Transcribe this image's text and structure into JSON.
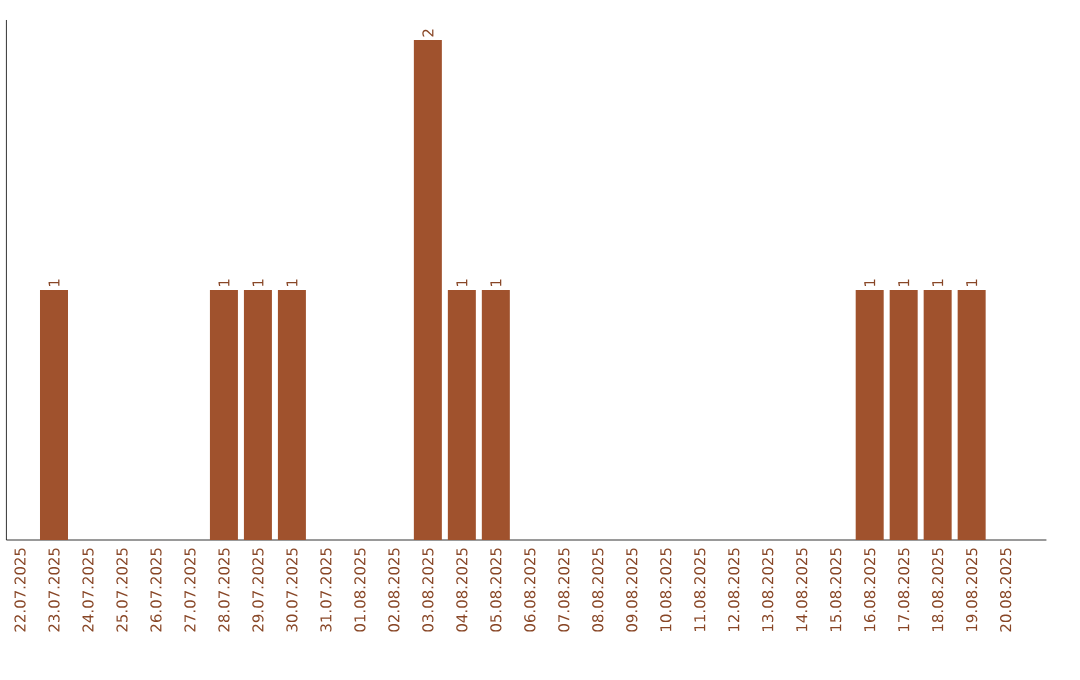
{
  "chart_data": {
    "type": "bar",
    "categories": [
      "22.07.2025",
      "23.07.2025",
      "24.07.2025",
      "25.07.2025",
      "26.07.2025",
      "27.07.2025",
      "28.07.2025",
      "29.07.2025",
      "30.07.2025",
      "31.07.2025",
      "01.08.2025",
      "02.08.2025",
      "03.08.2025",
      "04.08.2025",
      "05.08.2025",
      "06.08.2025",
      "07.08.2025",
      "08.08.2025",
      "09.08.2025",
      "10.08.2025",
      "11.08.2025",
      "12.08.2025",
      "13.08.2025",
      "14.08.2025",
      "15.08.2025",
      "16.08.2025",
      "17.08.2025",
      "18.08.2025",
      "19.08.2025",
      "20.08.2025"
    ],
    "values": [
      0,
      1,
      0,
      0,
      0,
      0,
      1,
      1,
      1,
      0,
      0,
      0,
      2,
      1,
      1,
      0,
      0,
      0,
      0,
      0,
      0,
      0,
      0,
      0,
      0,
      1,
      1,
      1,
      1,
      0
    ],
    "value_labels": [
      null,
      "1",
      null,
      null,
      null,
      null,
      "1",
      "1",
      "1",
      null,
      null,
      null,
      "2",
      "1",
      "1",
      null,
      null,
      null,
      null,
      null,
      null,
      null,
      null,
      null,
      null,
      "1",
      "1",
      "1",
      "1",
      null
    ],
    "color": "#a0522d",
    "ylim": [
      0,
      2.08
    ],
    "grid": false
  }
}
